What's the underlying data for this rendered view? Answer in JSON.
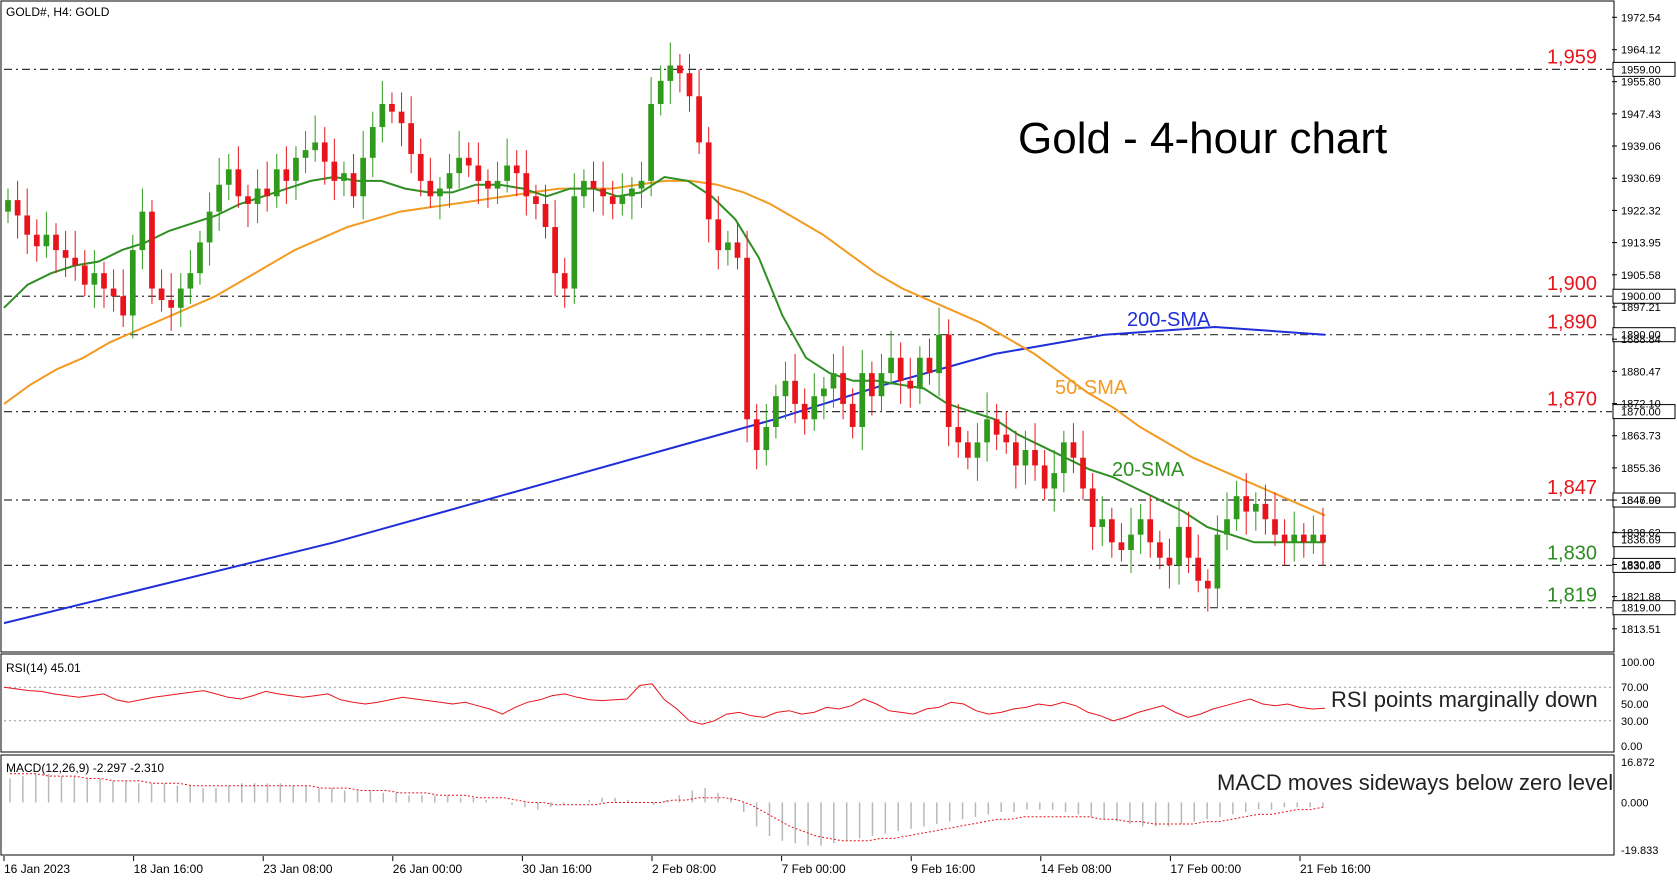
{
  "chart_data": {
    "type": "candlestick",
    "symbol_label": "GOLD#, H4:  GOLD",
    "title": "Gold - 4-hour chart",
    "price_axis": {
      "range": [
        1808,
        1976
      ],
      "ticks": [
        "1972.54",
        "1964.12",
        "1955.80",
        "1947.43",
        "1939.06",
        "1930.69",
        "1922.32",
        "1913.95",
        "1905.58",
        "1897.21",
        "1888.84",
        "1880.47",
        "1872.10",
        "1863.73",
        "1855.36",
        "1846.99",
        "1838.62",
        "1830.25",
        "1821.88",
        "1813.51"
      ]
    },
    "x_ticks": [
      "16 Jan 2023",
      "18 Jan 16:00",
      "23 Jan 08:00",
      "26 Jan 00:00",
      "30 Jan 16:00",
      "2 Feb 08:00",
      "7 Feb 00:00",
      "9 Feb 16:00",
      "14 Feb 08:00",
      "17 Feb 00:00",
      "21 Feb 16:00"
    ],
    "levels": [
      {
        "value": 1959,
        "label": "1,959",
        "axis_label": "1959.00",
        "color": "#e8141c"
      },
      {
        "value": 1900,
        "label": "1,900",
        "axis_label": "1900.00",
        "color": "#e8141c"
      },
      {
        "value": 1890,
        "label": "1,890",
        "axis_label": "1890.00",
        "color": "#e8141c"
      },
      {
        "value": 1870,
        "label": "1,870",
        "axis_label": "1870.00",
        "color": "#e8141c"
      },
      {
        "value": 1847,
        "label": "1,847",
        "axis_label": "1847.00",
        "color": "#e8141c"
      },
      {
        "value": 1830,
        "label": "1,830",
        "axis_label": "1830.00",
        "color": "#2e8b22"
      },
      {
        "value": 1819,
        "label": "1,819",
        "axis_label": "1819.00",
        "color": "#2e8b22"
      }
    ],
    "current_price": "1836.69",
    "close_series": [
      1925,
      1921,
      1916,
      1913,
      1916,
      1912,
      1910,
      1908,
      1903,
      1906,
      1902,
      1900,
      1895,
      1912,
      1922,
      1902,
      1899,
      1897,
      1902,
      1906,
      1914,
      1922,
      1929,
      1933,
      1926,
      1924,
      1928,
      1926,
      1933,
      1930,
      1936,
      1938,
      1940,
      1935,
      1930,
      1932,
      1926,
      1936,
      1944,
      1950,
      1948,
      1945,
      1937,
      1930,
      1926,
      1928,
      1932,
      1936,
      1934,
      1930,
      1928,
      1930,
      1934,
      1932,
      1926,
      1924,
      1918,
      1906,
      1902,
      1926,
      1930,
      1928,
      1926,
      1924,
      1926,
      1928,
      1930,
      1950,
      1956,
      1960,
      1958,
      1952,
      1940,
      1920,
      1912,
      1914,
      1910,
      1868,
      1860,
      1866,
      1874,
      1878,
      1872,
      1868,
      1874,
      1876,
      1880,
      1872,
      1866,
      1880,
      1874,
      1880,
      1884,
      1878,
      1876,
      1884,
      1880,
      1890,
      1866,
      1862,
      1858,
      1862,
      1868,
      1864,
      1862,
      1856,
      1860,
      1856,
      1850,
      1854,
      1862,
      1858,
      1850,
      1840,
      1842,
      1836,
      1834,
      1838,
      1842,
      1836,
      1832,
      1830,
      1840,
      1832,
      1826,
      1824,
      1838,
      1842,
      1848,
      1844,
      1846,
      1842,
      1838,
      1836,
      1838,
      1836,
      1838,
      1836
    ],
    "sma20": [
      1897,
      1903,
      1906,
      1908,
      1909,
      1912,
      1914,
      1917,
      1919,
      1921,
      1924,
      1926,
      1928,
      1930,
      1931,
      1930,
      1930,
      1928,
      1927,
      1927,
      1929,
      1929,
      1928,
      1926,
      1928,
      1928,
      1926,
      1927,
      1931,
      1930,
      1926,
      1920,
      1910,
      1895,
      1884,
      1880,
      1878,
      1878,
      1877,
      1876,
      1872,
      1870,
      1868,
      1864,
      1861,
      1858,
      1855,
      1853,
      1850,
      1847,
      1844,
      1840,
      1838,
      1836,
      1836,
      1836,
      1836
    ],
    "sma50": [
      1872,
      1877,
      1881,
      1884,
      1888,
      1891,
      1894,
      1897,
      1900,
      1904,
      1908,
      1912,
      1915,
      1918,
      1920,
      1922,
      1923,
      1924,
      1925,
      1926,
      1927,
      1928,
      1928,
      1928,
      1929,
      1930,
      1930,
      1929,
      1927,
      1924,
      1920,
      1916,
      1911,
      1906,
      1902,
      1899,
      1896,
      1893,
      1889,
      1885,
      1880,
      1875,
      1871,
      1866,
      1862,
      1858,
      1855,
      1852,
      1849,
      1846,
      1843
    ],
    "sma200": [
      1815,
      1822,
      1829,
      1836,
      1844,
      1852,
      1860,
      1868,
      1877,
      1885,
      1890,
      1892,
      1890
    ],
    "labels": {
      "sma200": "200-SMA",
      "sma50": "50-SMA",
      "sma20": "20-SMA"
    },
    "rsi": {
      "label": "RSI(14) 45.01",
      "ticks": [
        "100.00",
        "70.00",
        "50.00",
        "30.00",
        "0.00"
      ],
      "levels": [
        30,
        70
      ],
      "annotation": "RSI points marginally down",
      "values": [
        70,
        68,
        66,
        65,
        62,
        60,
        58,
        60,
        62,
        55,
        52,
        55,
        58,
        60,
        62,
        64,
        66,
        62,
        58,
        56,
        60,
        65,
        62,
        60,
        58,
        60,
        62,
        55,
        52,
        50,
        52,
        55,
        58,
        56,
        54,
        52,
        50,
        52,
        48,
        44,
        38,
        46,
        52,
        55,
        60,
        62,
        58,
        55,
        54,
        55,
        56,
        72,
        74,
        55,
        44,
        30,
        26,
        30,
        38,
        40,
        36,
        34,
        40,
        42,
        38,
        40,
        46,
        44,
        48,
        56,
        50,
        42,
        40,
        38,
        44,
        46,
        52,
        50,
        42,
        38,
        40,
        44,
        46,
        50,
        48,
        52,
        48,
        40,
        36,
        30,
        34,
        40,
        44,
        48,
        40,
        34,
        38,
        44,
        48,
        52,
        56,
        50,
        48,
        50,
        46,
        44,
        45
      ]
    },
    "macd": {
      "label": "MACD(12,26,9) -2.297 -2.310",
      "ticks": [
        "16.872",
        "0.000",
        "-19.833"
      ],
      "annotation": "MACD moves sideways below zero level",
      "hist": [
        10,
        11,
        12,
        12,
        11,
        11,
        10,
        10,
        9,
        9,
        8,
        8,
        8,
        7,
        7,
        6,
        6,
        7,
        8,
        8,
        8,
        8,
        7,
        7,
        6,
        6,
        5,
        5,
        5,
        4,
        4,
        3,
        3,
        3,
        3,
        2,
        2,
        1,
        0,
        -1,
        -2,
        -3,
        -2,
        -1,
        0,
        1,
        2,
        2,
        1,
        0,
        -1,
        1,
        3,
        5,
        6,
        4,
        2,
        -4,
        -10,
        -14,
        -16,
        -17,
        -18,
        -18,
        -17,
        -16,
        -15,
        -14,
        -13,
        -12,
        -11,
        -10,
        -9,
        -8,
        -7,
        -6,
        -5,
        -4,
        -4,
        -3,
        -3,
        -3,
        -4,
        -5,
        -6,
        -7,
        -8,
        -9,
        -10,
        -10,
        -10,
        -9,
        -8,
        -7,
        -6,
        -5,
        -4,
        -3,
        -3,
        -2,
        -2,
        -2,
        -2
      ],
      "signal": [
        12,
        12,
        12,
        11,
        11,
        11,
        10,
        10,
        9,
        9,
        9,
        8,
        8,
        8,
        7,
        7,
        7,
        7,
        7,
        7,
        7,
        7,
        7,
        7,
        6,
        6,
        6,
        5,
        5,
        5,
        4,
        4,
        4,
        3,
        3,
        3,
        2,
        2,
        2,
        1,
        0,
        0,
        -1,
        -1,
        -1,
        -1,
        0,
        0,
        0,
        0,
        0,
        1,
        1,
        2,
        2,
        2,
        1,
        -1,
        -4,
        -7,
        -10,
        -12,
        -14,
        -15,
        -16,
        -16,
        -16,
        -15,
        -15,
        -14,
        -13,
        -12,
        -11,
        -10,
        -9,
        -8,
        -7,
        -7,
        -6,
        -6,
        -6,
        -6,
        -6,
        -6,
        -7,
        -7,
        -8,
        -8,
        -9,
        -9,
        -9,
        -9,
        -8,
        -8,
        -7,
        -6,
        -5,
        -5,
        -4,
        -3,
        -3,
        -2
      ]
    }
  },
  "colors": {
    "bull": "#2f9a1c",
    "bear": "#e8141c",
    "sma20": "#2f8f22",
    "sma50": "#f39a22",
    "sma200": "#1f2fd8",
    "grid": "#000000",
    "level_line": "#333333"
  }
}
